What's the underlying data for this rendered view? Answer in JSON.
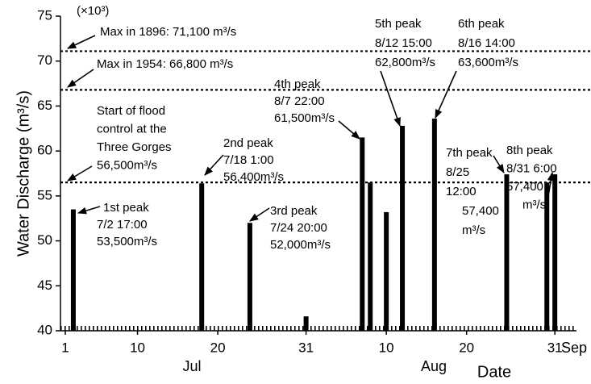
{
  "chart_data": {
    "type": "bar",
    "y_label": "Water Discharge (m³/s)",
    "y_unit_note": "(×10³)",
    "x_label": "Date",
    "months": [
      "Jul",
      "Aug",
      "Sep"
    ],
    "xlim": [
      0.4,
      66
    ],
    "xticks": [
      1,
      10,
      20,
      31,
      {
        "value": 41,
        "label": "10"
      },
      {
        "value": 51,
        "label": "20"
      },
      {
        "value": 62,
        "label": "31"
      }
    ],
    "ylim": [
      40,
      75
    ],
    "yticks": [
      40,
      45,
      50,
      55,
      60,
      65,
      70,
      75
    ],
    "color": "#000000",
    "x": [
      2,
      18,
      24,
      31,
      38,
      39,
      41,
      43,
      47,
      56,
      61,
      62
    ],
    "values": [
      53.5,
      56.4,
      52.0,
      41.6,
      61.5,
      56.5,
      53.2,
      62.8,
      63.6,
      57.4,
      56.5,
      57.4
    ],
    "reference_lines": [
      {
        "value": 71.1,
        "lines": [
          "Max in 1896: 71,100 m³/s"
        ]
      },
      {
        "value": 66.8,
        "lines": [
          "Max in 1954: 66,800 m³/s"
        ]
      },
      {
        "value": 56.5,
        "lines": [
          "Start of flood",
          "control at the",
          "Three Gorges",
          "56,500m³/s"
        ]
      }
    ],
    "annotations": [
      {
        "lines": [
          "1st peak",
          "7/2 17:00",
          "53,500m³/s"
        ]
      },
      {
        "lines": [
          "2nd peak",
          "7/18 1:00",
          "56,400m³/s"
        ]
      },
      {
        "lines": [
          "3rd peak",
          "7/24 20:00",
          "52,000m³/s"
        ]
      },
      {
        "lines": [
          "4th peak",
          "8/7 22:00",
          "61,500m³/s"
        ]
      },
      {
        "lines": [
          "5th peak",
          "8/12 15:00",
          "62,800m³/s"
        ]
      },
      {
        "lines": [
          "6th peak",
          "8/16 14:00",
          "63,600m³/s"
        ]
      },
      {
        "lines": [
          "7th peak",
          "8/25",
          "12:00",
          "57,400",
          "m³/s"
        ]
      },
      {
        "lines": [
          "8th peak",
          "8/31  6:00",
          "57,400",
          "m³/s"
        ]
      }
    ]
  }
}
